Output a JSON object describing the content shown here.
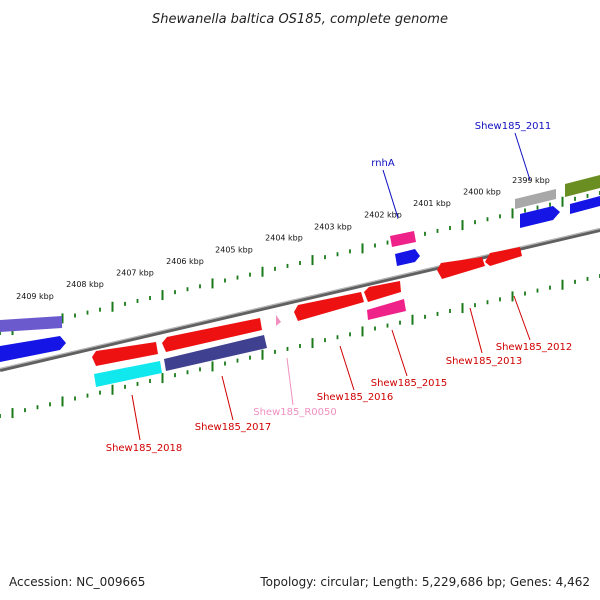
{
  "title": "Shewanella baltica OS185, complete genome",
  "footer": {
    "accession": "Accession: NC_009665",
    "topology": "Topology: circular; Length: 5,229,686 bp; Genes: 4,462"
  },
  "ticks": [
    {
      "kbp": 2399,
      "label": "2399 kbp"
    },
    {
      "kbp": 2400,
      "label": "2400 kbp"
    },
    {
      "kbp": 2401,
      "label": "2401 kbp"
    },
    {
      "kbp": 2402,
      "label": "2402 kbp"
    },
    {
      "kbp": 2403,
      "label": "2403 kbp"
    },
    {
      "kbp": 2404,
      "label": "2404 kbp"
    },
    {
      "kbp": 2405,
      "label": "2405 kbp"
    },
    {
      "kbp": 2406,
      "label": "2406 kbp"
    },
    {
      "kbp": 2407,
      "label": "2407 kbp"
    },
    {
      "kbp": 2408,
      "label": "2408 kbp"
    },
    {
      "kbp": 2409,
      "label": "2409 kbp"
    }
  ],
  "gene_labels": [
    {
      "text": "Shew185_2011",
      "color": "#1010c0"
    },
    {
      "text": "rnhA",
      "color": "#1010c0"
    },
    {
      "text": "Shew185_2012",
      "color": "#d00000"
    },
    {
      "text": "Shew185_2013",
      "color": "#d00000"
    },
    {
      "text": "Shew185_2015",
      "color": "#d00000"
    },
    {
      "text": "Shew185_2016",
      "color": "#d00000"
    },
    {
      "text": "Shew185_R0050",
      "color": "#f090c0"
    },
    {
      "text": "Shew185_2017",
      "color": "#d00000"
    },
    {
      "text": "Shew185_2018",
      "color": "#d00000"
    }
  ],
  "colors": {
    "backbone": "#808080",
    "ticks": "#1a7a1a",
    "red": "#ee1111",
    "blue": "#1010e0",
    "navy": "#404090",
    "cyan": "#10f0f0",
    "magenta": "#ee3399",
    "pink": "#f090c0",
    "gray": "#a0a0a0",
    "olive": "#6b8e23",
    "slate": "#6a5acd"
  }
}
